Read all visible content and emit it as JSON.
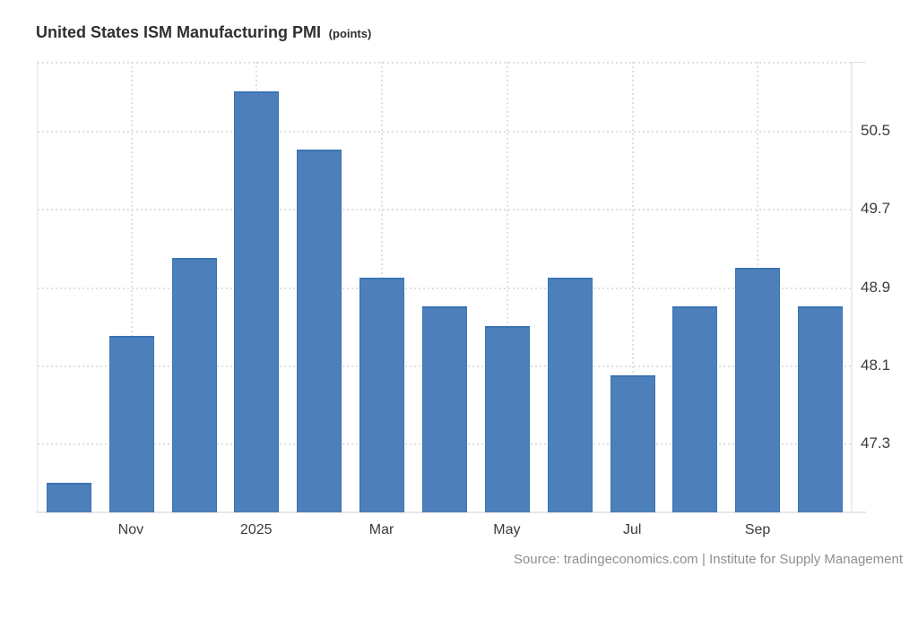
{
  "header": {
    "title": "United States ISM Manufacturing PMI",
    "unit": "(points)"
  },
  "footer": {
    "source": "Source: tradingeconomics.com | Institute for Supply Management"
  },
  "chart_data": {
    "type": "bar",
    "title": "United States ISM Manufacturing PMI (points)",
    "categories": [
      "",
      "Nov",
      "",
      "2025",
      "",
      "Mar",
      "",
      "May",
      "",
      "Jul",
      "",
      "Sep",
      ""
    ],
    "values": [
      46.9,
      48.4,
      49.2,
      50.9,
      50.3,
      49.0,
      48.7,
      48.5,
      49.0,
      48.0,
      48.7,
      49.1,
      48.7
    ],
    "x_tick_labels": [
      "Nov",
      "2025",
      "Mar",
      "May",
      "Jul",
      "Sep"
    ],
    "x_tick_slot_indexes": [
      1,
      3,
      5,
      7,
      9,
      11
    ],
    "yticks": [
      50.5,
      49.7,
      48.9,
      48.1,
      47.3
    ],
    "ylim": [
      46.6,
      51.2
    ],
    "ylabel": "points",
    "grid": "dotted horizontal and vertical, top edge dotted",
    "legend_position": "none",
    "bar_color": "#4d80bb",
    "bar_border_color": "#3b74b3",
    "axis_label_color": "#3b3b3b",
    "grid_color": "#e0e0e0",
    "source_text_color": "#8e8e8e"
  }
}
